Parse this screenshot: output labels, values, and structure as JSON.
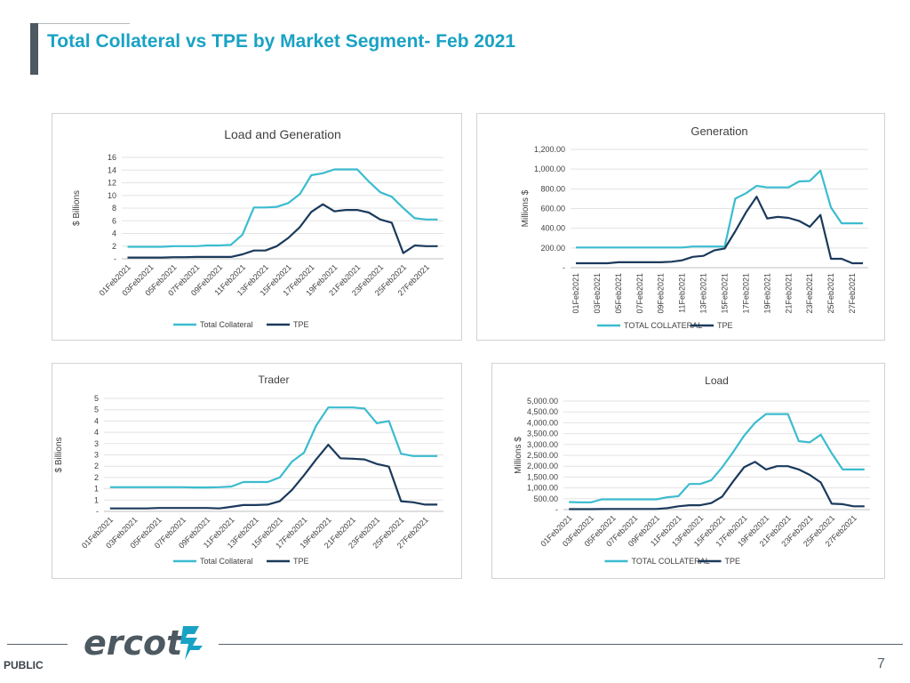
{
  "slide": {
    "title": "Total Collateral vs TPE  by Market Segment- Feb 2021",
    "classification": "PUBLIC",
    "page_number": "7",
    "logo_text": "ercot"
  },
  "colors": {
    "title": "#1aa2c4",
    "total_collateral": "#3bbccf",
    "tpe": "#1b3a5c",
    "grid": "#e3e3e3",
    "text": "#404040"
  },
  "chart_data": [
    {
      "type": "line",
      "title": "Load and Generation",
      "ylabel": "$ Billions",
      "xlabel": "",
      "x": [
        "01Feb2021",
        "02Feb2021",
        "03Feb2021",
        "04Feb2021",
        "05Feb2021",
        "06Feb2021",
        "07Feb2021",
        "08Feb2021",
        "09Feb2021",
        "10Feb2021",
        "11Feb2021",
        "12Feb2021",
        "13Feb2021",
        "14Feb2021",
        "15Feb2021",
        "16Feb2021",
        "17Feb2021",
        "18Feb2021",
        "19Feb2021",
        "20Feb2021",
        "21Feb2021",
        "22Feb2021",
        "23Feb2021",
        "24Feb2021",
        "25Feb2021",
        "26Feb2021",
        "27Feb2021",
        "28Feb2021"
      ],
      "x_tick_labels": [
        "01Feb2021",
        "03Feb2021",
        "05Feb2021",
        "07Feb2021",
        "09Feb2021",
        "11Feb2021",
        "13Feb2021",
        "15Feb2021",
        "17Feb2021",
        "19Feb2021",
        "21Feb2021",
        "23Feb2021",
        "25Feb2021",
        "27Feb2021"
      ],
      "y_tick_labels": [
        "-",
        "2",
        "4",
        "6",
        "8",
        "10",
        "12",
        "14",
        "16"
      ],
      "ylim": [
        0,
        16
      ],
      "y_step": 2,
      "grid": true,
      "legend": "bottom",
      "series": [
        {
          "name": "Total Collateral",
          "values": [
            1.9,
            1.9,
            1.9,
            1.9,
            2.0,
            2.0,
            2.0,
            2.1,
            2.1,
            2.2,
            3.8,
            8.1,
            8.1,
            8.2,
            8.8,
            10.2,
            13.2,
            13.5,
            14.1,
            14.1,
            14.1,
            12.2,
            10.5,
            9.8,
            8.0,
            6.4,
            6.2,
            6.2
          ]
        },
        {
          "name": "TPE",
          "values": [
            0.2,
            0.2,
            0.2,
            0.2,
            0.25,
            0.25,
            0.3,
            0.3,
            0.3,
            0.3,
            0.7,
            1.3,
            1.3,
            2.0,
            3.3,
            5.0,
            7.4,
            8.6,
            7.5,
            7.7,
            7.7,
            7.3,
            6.2,
            5.7,
            0.9,
            2.1,
            2.0,
            2.0
          ]
        }
      ]
    },
    {
      "type": "line",
      "title": "Generation",
      "ylabel": "Millions $",
      "xlabel": "",
      "x": [
        "01Feb2021",
        "02Feb2021",
        "03Feb2021",
        "04Feb2021",
        "05Feb2021",
        "06Feb2021",
        "07Feb2021",
        "08Feb2021",
        "09Feb2021",
        "10Feb2021",
        "11Feb2021",
        "12Feb2021",
        "13Feb2021",
        "14Feb2021",
        "15Feb2021",
        "16Feb2021",
        "17Feb2021",
        "18Feb2021",
        "19Feb2021",
        "20Feb2021",
        "21Feb2021",
        "22Feb2021",
        "23Feb2021",
        "24Feb2021",
        "25Feb2021",
        "26Feb2021",
        "27Feb2021",
        "28Feb2021"
      ],
      "x_tick_labels": [
        "01Feb2021",
        "03Feb2021",
        "05Feb2021",
        "07Feb2021",
        "09Feb2021",
        "11Feb2021",
        "13Feb2021",
        "15Feb2021",
        "17Feb2021",
        "19Feb2021",
        "21Feb2021",
        "23Feb2021",
        "25Feb2021",
        "27Feb2021"
      ],
      "y_tick_labels": [
        "-",
        "200.00",
        "400.00",
        "600.00",
        "800.00",
        "1,000.00",
        "1,200.00"
      ],
      "ylim": [
        0,
        1200
      ],
      "y_step": 200,
      "grid": true,
      "legend": "bottom",
      "series": [
        {
          "name": "TOTAL COLLATERAL",
          "values": [
            205,
            205,
            205,
            205,
            205,
            205,
            205,
            205,
            205,
            205,
            205,
            215,
            215,
            215,
            215,
            700,
            755,
            830,
            815,
            815,
            815,
            875,
            880,
            985,
            610,
            450,
            450,
            450
          ]
        },
        {
          "name": "TPE",
          "values": [
            45,
            45,
            45,
            45,
            55,
            55,
            55,
            55,
            55,
            60,
            75,
            110,
            120,
            175,
            195,
            370,
            560,
            720,
            500,
            515,
            505,
            475,
            415,
            535,
            90,
            90,
            45,
            45
          ]
        }
      ]
    },
    {
      "type": "line",
      "title": "Trader",
      "ylabel": "$ Billions",
      "xlabel": "",
      "x": [
        "01Feb2021",
        "02Feb2021",
        "03Feb2021",
        "04Feb2021",
        "05Feb2021",
        "06Feb2021",
        "07Feb2021",
        "08Feb2021",
        "09Feb2021",
        "10Feb2021",
        "11Feb2021",
        "12Feb2021",
        "13Feb2021",
        "14Feb2021",
        "15Feb2021",
        "16Feb2021",
        "17Feb2021",
        "18Feb2021",
        "19Feb2021",
        "20Feb2021",
        "21Feb2021",
        "22Feb2021",
        "23Feb2021",
        "24Feb2021",
        "25Feb2021",
        "26Feb2021",
        "27Feb2021",
        "28Feb2021"
      ],
      "x_tick_labels": [
        "01Feb2021",
        "03Feb2021",
        "05Feb2021",
        "07Feb2021",
        "09Feb2021",
        "11Feb2021",
        "13Feb2021",
        "15Feb2021",
        "17Feb2021",
        "19Feb2021",
        "21Feb2021",
        "23Feb2021",
        "25Feb2021",
        "27Feb2021"
      ],
      "y_tick_labels": [
        "-",
        "1",
        "1",
        "2",
        "2",
        "3",
        "3",
        "4",
        "4",
        "5",
        "5"
      ],
      "ylim": [
        0,
        5
      ],
      "y_step": 0.5,
      "grid": true,
      "legend": "bottom",
      "series": [
        {
          "name": "Total Collateral",
          "values": [
            1.07,
            1.07,
            1.07,
            1.07,
            1.07,
            1.07,
            1.07,
            1.06,
            1.06,
            1.07,
            1.1,
            1.3,
            1.3,
            1.3,
            1.5,
            2.2,
            2.6,
            3.8,
            4.6,
            4.6,
            4.6,
            4.55,
            3.9,
            4.0,
            2.55,
            2.45,
            2.45,
            2.45
          ]
        },
        {
          "name": "TPE",
          "values": [
            0.13,
            0.13,
            0.13,
            0.13,
            0.15,
            0.15,
            0.15,
            0.15,
            0.15,
            0.13,
            0.2,
            0.28,
            0.28,
            0.3,
            0.45,
            0.95,
            1.6,
            2.3,
            2.95,
            2.35,
            2.33,
            2.3,
            2.1,
            1.98,
            0.45,
            0.4,
            0.3,
            0.3
          ]
        }
      ]
    },
    {
      "type": "line",
      "title": "Load",
      "ylabel": "Millions $",
      "xlabel": "",
      "x": [
        "01Feb2021",
        "02Feb2021",
        "03Feb2021",
        "04Feb2021",
        "05Feb2021",
        "06Feb2021",
        "07Feb2021",
        "08Feb2021",
        "09Feb2021",
        "10Feb2021",
        "11Feb2021",
        "12Feb2021",
        "13Feb2021",
        "14Feb2021",
        "15Feb2021",
        "16Feb2021",
        "17Feb2021",
        "18Feb2021",
        "19Feb2021",
        "20Feb2021",
        "21Feb2021",
        "22Feb2021",
        "23Feb2021",
        "24Feb2021",
        "25Feb2021",
        "26Feb2021",
        "27Feb2021",
        "28Feb2021"
      ],
      "x_tick_labels": [
        "01Feb2021",
        "03Feb2021",
        "05Feb2021",
        "07Feb2021",
        "09Feb2021",
        "11Feb2021",
        "13Feb2021",
        "15Feb2021",
        "17Feb2021",
        "19Feb2021",
        "21Feb2021",
        "23Feb2021",
        "25Feb2021",
        "27Feb2021"
      ],
      "y_tick_labels": [
        "-",
        "500.00",
        "1,000.00",
        "1,500.00",
        "2,000.00",
        "2,500.00",
        "3,000.00",
        "3,500.00",
        "4,000.00",
        "4,500.00",
        "5,000.00"
      ],
      "ylim": [
        0,
        5000
      ],
      "y_step": 500,
      "grid": true,
      "legend": "bottom",
      "series": [
        {
          "name": "TOTAL COLLATERAL",
          "values": [
            350,
            330,
            330,
            470,
            470,
            470,
            470,
            470,
            470,
            570,
            620,
            1180,
            1180,
            1350,
            1950,
            2650,
            3400,
            4000,
            4400,
            4400,
            4400,
            3150,
            3100,
            3450,
            2600,
            1850,
            1850,
            1850
          ]
        },
        {
          "name": "TPE",
          "values": [
            20,
            20,
            20,
            25,
            30,
            30,
            30,
            30,
            30,
            70,
            150,
            200,
            200,
            300,
            600,
            1300,
            1950,
            2200,
            1850,
            2000,
            2000,
            1850,
            1600,
            1250,
            270,
            250,
            150,
            150
          ]
        }
      ]
    }
  ]
}
